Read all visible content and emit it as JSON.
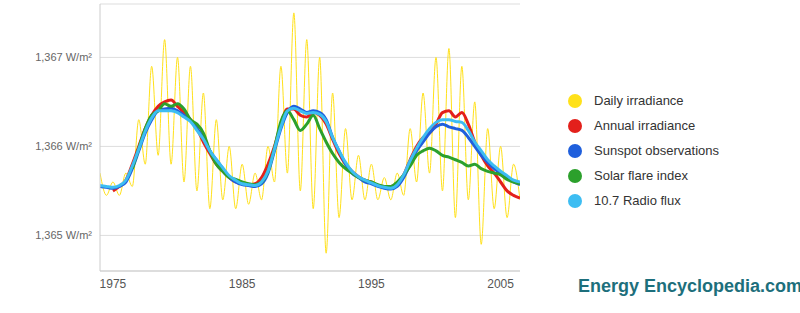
{
  "chart_data": {
    "type": "line",
    "legend": "right",
    "grid": true,
    "annotations": [
      "Energy Encyclopedia.com"
    ],
    "xlim": [
      1974,
      2006.5
    ],
    "xticks": [
      1975,
      1985,
      1995,
      2005
    ],
    "ylim": [
      1364.6,
      1367.6
    ],
    "yticks": [
      {
        "value": 1365,
        "label": "1,365 W/m²"
      },
      {
        "value": 1366,
        "label": "1,366 W/m²"
      },
      {
        "value": 1367,
        "label": "1,367 W/m²"
      }
    ],
    "x": [
      1974,
      1974.5,
      1975,
      1975.5,
      1976,
      1976.5,
      1977,
      1977.5,
      1978,
      1978.5,
      1979,
      1979.5,
      1980,
      1980.5,
      1981,
      1981.5,
      1982,
      1982.5,
      1983,
      1983.5,
      1984,
      1984.5,
      1985,
      1985.5,
      1986,
      1986.5,
      1987,
      1987.5,
      1988,
      1988.5,
      1989,
      1989.5,
      1990,
      1990.5,
      1991,
      1991.5,
      1992,
      1992.5,
      1993,
      1993.5,
      1994,
      1994.5,
      1995,
      1995.5,
      1996,
      1996.5,
      1997,
      1997.5,
      1998,
      1998.5,
      1999,
      1999.5,
      2000,
      2000.5,
      2001,
      2001.5,
      2002,
      2002.5,
      2003,
      2003.5,
      2004,
      2004.5,
      2005,
      2005.5,
      2006,
      2006.5
    ],
    "series": [
      {
        "name": "Daily irradiance",
        "color": "#ffe11a",
        "values": [
          1365.7,
          1365.45,
          1365.6,
          1365.45,
          1365.7,
          1365.55,
          1366.3,
          1365.8,
          1366.9,
          1365.9,
          1367.2,
          1365.8,
          1367.0,
          1365.6,
          1366.9,
          1365.5,
          1366.6,
          1365.3,
          1366.3,
          1365.4,
          1366.0,
          1365.3,
          1365.8,
          1365.35,
          1365.7,
          1365.4,
          1366.0,
          1365.6,
          1366.9,
          1365.7,
          1367.5,
          1365.5,
          1367.2,
          1365.3,
          1367.0,
          1364.8,
          1366.6,
          1365.2,
          1366.2,
          1365.4,
          1365.9,
          1365.4,
          1365.8,
          1365.4,
          1365.65,
          1365.4,
          1365.7,
          1365.45,
          1366.2,
          1365.6,
          1366.6,
          1365.7,
          1367.0,
          1365.5,
          1367.1,
          1365.2,
          1366.9,
          1365.4,
          1366.5,
          1364.9,
          1366.2,
          1365.3,
          1366.0,
          1365.2,
          1365.8,
          1365.4
        ]
      },
      {
        "name": "Annual irradiance",
        "color": "#e3201b",
        "values": [
          null,
          null,
          1365.5,
          1365.55,
          1365.62,
          1365.8,
          1366.0,
          1366.2,
          1366.35,
          1366.45,
          1366.5,
          1366.52,
          1366.45,
          1366.38,
          1366.3,
          1366.2,
          1366.05,
          1365.92,
          1365.8,
          1365.72,
          1365.65,
          1365.6,
          1365.58,
          1365.57,
          1365.58,
          1365.65,
          1365.8,
          1366.0,
          1366.25,
          1366.42,
          1366.42,
          1366.35,
          1366.33,
          1366.38,
          1366.35,
          1366.25,
          1366.08,
          1365.92,
          1365.8,
          1365.72,
          1365.66,
          1365.62,
          1365.6,
          1365.56,
          1365.55,
          1365.55,
          1365.58,
          1365.68,
          1365.85,
          1366.0,
          1366.1,
          1366.15,
          1366.25,
          1366.38,
          1366.4,
          1366.33,
          1366.38,
          1366.25,
          1366.05,
          1365.9,
          1365.78,
          1365.7,
          1365.6,
          1365.5,
          1365.45,
          1365.42
        ]
      },
      {
        "name": "Sunspot observations",
        "color": "#1f5fdc",
        "values": [
          1365.55,
          1365.54,
          1365.53,
          1365.55,
          1365.6,
          1365.75,
          1365.95,
          1366.15,
          1366.3,
          1366.4,
          1366.42,
          1366.43,
          1366.4,
          1366.35,
          1366.3,
          1366.2,
          1366.1,
          1365.95,
          1365.85,
          1365.75,
          1365.65,
          1365.6,
          1365.57,
          1365.56,
          1365.55,
          1365.58,
          1365.7,
          1365.95,
          1366.2,
          1366.38,
          1366.45,
          1366.42,
          1366.38,
          1366.4,
          1366.38,
          1366.3,
          1366.1,
          1365.95,
          1365.8,
          1365.7,
          1365.65,
          1365.6,
          1365.58,
          1365.55,
          1365.53,
          1365.52,
          1365.55,
          1365.65,
          1365.8,
          1365.95,
          1366.05,
          1366.15,
          1366.22,
          1366.25,
          1366.22,
          1366.2,
          1366.18,
          1366.1,
          1366.0,
          1365.9,
          1365.82,
          1365.75,
          1365.7,
          1365.65,
          1365.6,
          1365.57
        ]
      },
      {
        "name": "Solar flare index",
        "color": "#2ca02c",
        "values": [
          null,
          null,
          null,
          null,
          null,
          1365.75,
          1365.98,
          1366.2,
          1366.35,
          1366.4,
          1366.48,
          1366.45,
          1366.48,
          1366.42,
          1366.3,
          1366.25,
          1366.15,
          1365.95,
          1365.8,
          1365.72,
          1365.65,
          1365.63,
          1365.6,
          1365.58,
          1365.57,
          1365.6,
          1365.72,
          1365.98,
          1366.28,
          1366.4,
          1366.3,
          1366.18,
          1366.25,
          1366.35,
          1366.2,
          1366.05,
          1365.92,
          1365.82,
          1365.75,
          1365.7,
          1365.65,
          1365.62,
          1365.6,
          1365.57,
          1365.55,
          1365.55,
          1365.6,
          1365.68,
          1365.78,
          1365.9,
          1365.95,
          1365.98,
          1365.95,
          1365.9,
          1365.88,
          1365.85,
          1365.82,
          1365.78,
          1365.8,
          1365.75,
          1365.72,
          1365.7,
          1365.68,
          1365.63,
          1365.6,
          1365.58
        ]
      },
      {
        "name": "10.7 Radio flux",
        "color": "#3dbdf2",
        "values": [
          1365.56,
          1365.55,
          1365.54,
          1365.56,
          1365.62,
          1365.78,
          1365.97,
          1366.17,
          1366.32,
          1366.4,
          1366.4,
          1366.4,
          1366.38,
          1366.33,
          1366.28,
          1366.18,
          1366.08,
          1365.95,
          1365.85,
          1365.76,
          1365.67,
          1365.62,
          1365.58,
          1365.57,
          1365.56,
          1365.6,
          1365.72,
          1365.97,
          1366.22,
          1366.4,
          1366.43,
          1366.4,
          1366.37,
          1366.38,
          1366.36,
          1366.28,
          1366.1,
          1365.95,
          1365.82,
          1365.72,
          1365.66,
          1365.62,
          1365.59,
          1365.56,
          1365.54,
          1365.53,
          1365.57,
          1365.68,
          1365.84,
          1365.98,
          1366.1,
          1366.2,
          1366.27,
          1366.3,
          1366.3,
          1366.28,
          1366.27,
          1366.18,
          1366.05,
          1365.95,
          1365.85,
          1365.78,
          1365.72,
          1365.67,
          1365.62,
          1365.6
        ]
      }
    ]
  }
}
